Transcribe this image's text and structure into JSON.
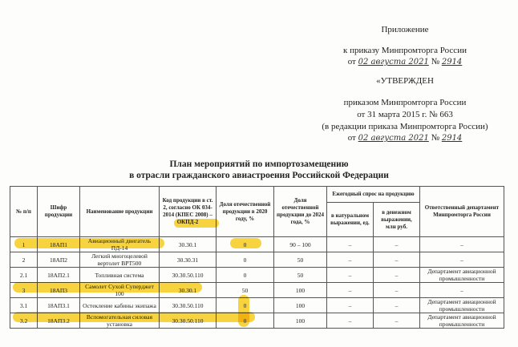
{
  "header": {
    "appendix": "Приложение",
    "to_order": "к приказу Минпромторга России",
    "from_label": "от",
    "date_handwritten": "02 августа 2021",
    "number_label": "№",
    "number_handwritten": "2914",
    "approved": "«УТВЕРЖДЕН",
    "by_order": "приказом Минпромторга России",
    "original_date": "от 31 марта 2015 г. № 663",
    "edition": "(в редакции приказа Минпромторга России)",
    "from_label2": "от",
    "date_handwritten2": "02 августа 2021",
    "number_label2": "№",
    "number_handwritten2": "2914"
  },
  "title": {
    "line1": "План мероприятий по импортозамещению",
    "line2": "в отрасли гражданского авиастроения Российской Федерации"
  },
  "table": {
    "headers": {
      "num": "№ п/п",
      "code": "Шифр продукции",
      "name": "Наименование продукции",
      "okpd": "Код продукции в ст. 2, согласно ОК 034-2014 (КПЕС 2008) – ОКПД-2",
      "share2020": "Доля отечественной продукции в 2020 году, %",
      "share2024": "Доля отечественной продукции до 2024 года, %",
      "demand": "Ежегодный спрос на продукцию",
      "demand_natural": "в натуральном выражении, ед.",
      "demand_money": "в денежном выражении, млн руб.",
      "department": "Ответственный департамент Минпромторга России"
    },
    "rows": [
      {
        "num": "1",
        "code": "18АП1",
        "name": "Авиационный двигатель ПД-14",
        "okpd": "30.30.1",
        "share2020": "0",
        "share2024": "90 – 100",
        "natural": "–",
        "money": "–",
        "dept": "–"
      },
      {
        "num": "2",
        "code": "18АП2",
        "name": "Легкий многоцелевой вертолет ВРТ500",
        "okpd": "30.30.31",
        "share2020": "0",
        "share2024": "50",
        "natural": "–",
        "money": "–",
        "dept": "–"
      },
      {
        "num": "2.1",
        "code": "18АП2.1",
        "name": "Топливная система",
        "okpd": "30.30.50.110",
        "share2020": "0",
        "share2024": "50",
        "natural": "–",
        "money": "–",
        "dept": "Департамент авиационной промышленности"
      },
      {
        "num": "3",
        "code": "18АП3",
        "name": "Самолет Сухой Суперджет 100",
        "okpd": "30.30.1",
        "share2020": "50",
        "share2024": "100",
        "natural": "–",
        "money": "–",
        "dept": "–"
      },
      {
        "num": "3.1",
        "code": "18АП3.1",
        "name": "Остекление кабины экипажа",
        "okpd": "30.30.50.110",
        "share2020": "0",
        "share2024": "100",
        "natural": "–",
        "money": "–",
        "dept": "Департамент авиационной промышленности"
      },
      {
        "num": "3.2",
        "code": "18АП3.2",
        "name": "Вспомогательная силовая установка",
        "okpd": "30.30.50.110",
        "share2020": "0",
        "share2024": "100",
        "natural": "–",
        "money": "–",
        "dept": "Департамент авиационной промышленности"
      }
    ]
  },
  "highlight_color": "#f7c900"
}
